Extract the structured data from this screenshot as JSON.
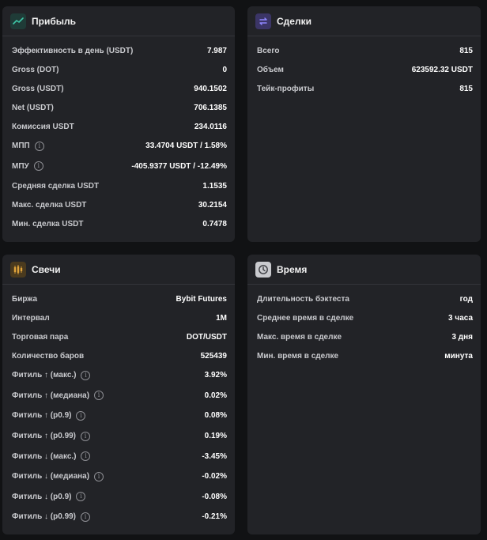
{
  "colors": {
    "background": "#111214",
    "card": "#222327",
    "profit_icon": "#3ec7a7",
    "deals_icon": "#6c5ce7",
    "candles_icon": "#e0a43a",
    "time_icon": "#c9cace"
  },
  "profit": {
    "title": "Прибыль",
    "icon": "trend-chart-icon",
    "rows": [
      {
        "label": "Эффективность в день (USDT)",
        "value": "7.987"
      },
      {
        "label": "Gross (DOT)",
        "value": "0"
      },
      {
        "label": "Gross (USDT)",
        "value": "940.1502"
      },
      {
        "label": "Net (USDT)",
        "value": "706.1385"
      },
      {
        "label": "Комиссия USDT",
        "value": "234.0116"
      },
      {
        "label": "МПП",
        "value": "33.4704 USDT / 1.58%",
        "info": true
      },
      {
        "label": "МПУ",
        "value": "-405.9377 USDT / -12.49%",
        "info": true
      },
      {
        "label": "Средняя сделка USDT",
        "value": "1.1535"
      },
      {
        "label": "Макс. сделка USDT",
        "value": "30.2154"
      },
      {
        "label": "Мин. сделка USDT",
        "value": "0.7478"
      }
    ]
  },
  "deals": {
    "title": "Сделки",
    "icon": "swap-arrows-icon",
    "rows": [
      {
        "label": "Всего",
        "value": "815"
      },
      {
        "label": "Объем",
        "value": "623592.32 USDT"
      },
      {
        "label": "Тейк-профиты",
        "value": "815"
      }
    ]
  },
  "candles": {
    "title": "Свечи",
    "icon": "candles-icon",
    "rows": [
      {
        "label": "Биржа",
        "value": "Bybit Futures"
      },
      {
        "label": "Интервал",
        "value": "1M"
      },
      {
        "label": "Торговая пара",
        "value": "DOT/USDT"
      },
      {
        "label": "Количество баров",
        "value": "525439"
      },
      {
        "label": "Фитиль ↑ (макс.)",
        "value": "3.92%",
        "info": true
      },
      {
        "label": "Фитиль ↑ (медиана)",
        "value": "0.02%",
        "info": true
      },
      {
        "label": "Фитиль ↑ (p0.9)",
        "value": "0.08%",
        "info": true
      },
      {
        "label": "Фитиль ↑ (p0.99)",
        "value": "0.19%",
        "info": true
      },
      {
        "label": "Фитиль ↓ (макс.)",
        "value": "-3.45%",
        "info": true
      },
      {
        "label": "Фитиль ↓ (медиана)",
        "value": "-0.02%",
        "info": true
      },
      {
        "label": "Фитиль ↓ (p0.9)",
        "value": "-0.08%",
        "info": true
      },
      {
        "label": "Фитиль ↓ (p0.99)",
        "value": "-0.21%",
        "info": true
      }
    ]
  },
  "time": {
    "title": "Время",
    "icon": "clock-icon",
    "rows": [
      {
        "label": "Длительность бэктеста",
        "value": "год"
      },
      {
        "label": "Среднее время в сделке",
        "value": "3 часа"
      },
      {
        "label": "Макс. время в сделке",
        "value": "3 дня"
      },
      {
        "label": "Мин. время в сделке",
        "value": "минута"
      }
    ]
  }
}
